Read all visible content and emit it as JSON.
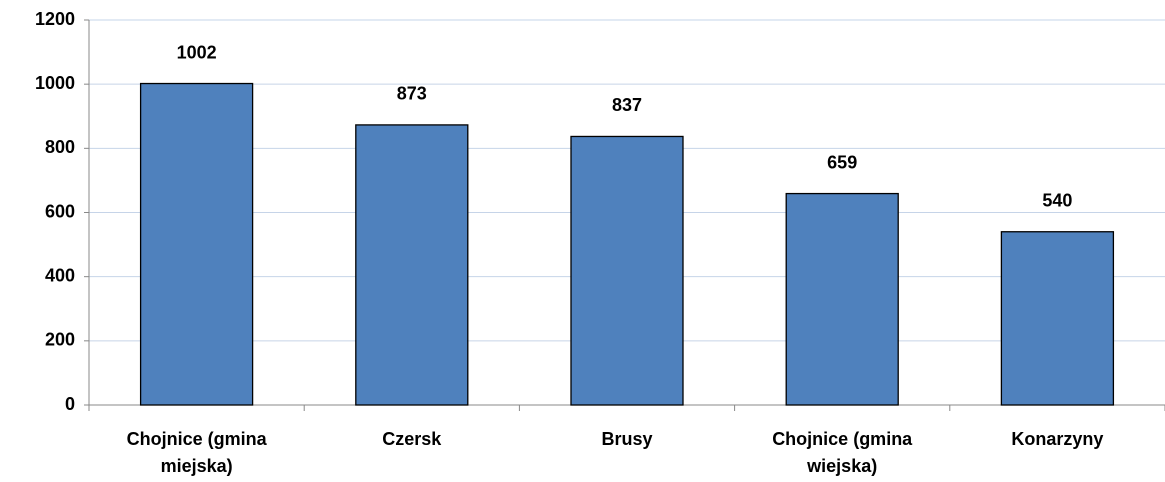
{
  "chart_data": {
    "type": "bar",
    "categories": [
      "Chojnice (gmina miejska)",
      "Czersk",
      "Brusy",
      "Chojnice (gmina wiejska)",
      "Konarzyny"
    ],
    "values": [
      1002,
      873,
      837,
      659,
      540
    ],
    "color": "#4f81bd",
    "ylim": [
      0,
      1200
    ],
    "yticks": [
      0,
      200,
      400,
      600,
      800,
      1000,
      1200
    ],
    "grid": true
  }
}
